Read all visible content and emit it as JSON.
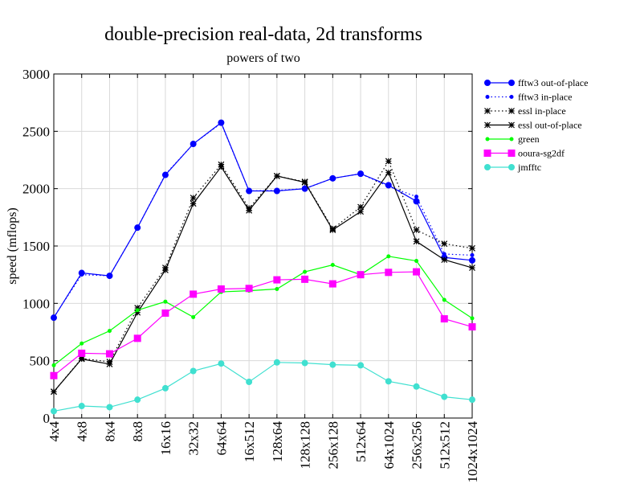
{
  "chart_data": {
    "type": "line",
    "title": "double-precision real-data, 2d transforms",
    "subtitle": "powers of two",
    "xlabel": "",
    "ylabel": "speed (mflops)",
    "ylim": [
      0,
      3000
    ],
    "yticks": [
      0,
      500,
      1000,
      1500,
      2000,
      2500,
      3000
    ],
    "grid": true,
    "legend_position": "right",
    "categories": [
      "4x4",
      "4x8",
      "8x4",
      "8x8",
      "16x16",
      "32x32",
      "64x64",
      "16x512",
      "128x64",
      "128x128",
      "256x128",
      "512x64",
      "64x1024",
      "256x256",
      "512x512",
      "1024x1024"
    ],
    "series": [
      {
        "name": "fftw3 out-of-place",
        "color": "#0000ff",
        "line": "solid",
        "marker": "circle",
        "values": [
          875,
          1265,
          1240,
          1660,
          2120,
          2390,
          2575,
          1980,
          1980,
          2000,
          2090,
          2130,
          2030,
          1890,
          1400,
          1375
        ]
      },
      {
        "name": "fftw3 in-place",
        "color": "#0000ff",
        "line": "dotted",
        "marker": "small-circle",
        "values": [
          880,
          1250,
          1240,
          1660,
          2125,
          2390,
          2570,
          1980,
          1985,
          2000,
          2090,
          2130,
          2020,
          1930,
          1430,
          1420
        ]
      },
      {
        "name": "essl in-place",
        "color": "#000000",
        "line": "dotted",
        "marker": "star",
        "values": [
          230,
          520,
          490,
          960,
          1310,
          1920,
          2210,
          1830,
          2110,
          2060,
          1650,
          1840,
          2240,
          1640,
          1520,
          1480
        ]
      },
      {
        "name": "essl out-of-place",
        "color": "#000000",
        "line": "solid",
        "marker": "star",
        "values": [
          230,
          515,
          470,
          920,
          1290,
          1870,
          2190,
          1810,
          2110,
          2055,
          1640,
          1800,
          2140,
          1540,
          1380,
          1310
        ]
      },
      {
        "name": "green",
        "color": "#00ff00",
        "line": "solid",
        "marker": "small-circle",
        "values": [
          460,
          650,
          760,
          940,
          1015,
          880,
          1100,
          1110,
          1125,
          1275,
          1335,
          1250,
          1410,
          1370,
          1030,
          870
        ]
      },
      {
        "name": "ooura-sg2df",
        "color": "#ff00ff",
        "line": "solid",
        "marker": "square",
        "values": [
          370,
          565,
          560,
          695,
          915,
          1080,
          1125,
          1130,
          1205,
          1210,
          1170,
          1250,
          1270,
          1275,
          865,
          795
        ]
      },
      {
        "name": "jmfftc",
        "color": "#40e0d0",
        "line": "solid",
        "marker": "circle",
        "values": [
          60,
          105,
          95,
          160,
          260,
          410,
          475,
          315,
          485,
          480,
          465,
          460,
          320,
          275,
          185,
          160
        ]
      }
    ]
  }
}
